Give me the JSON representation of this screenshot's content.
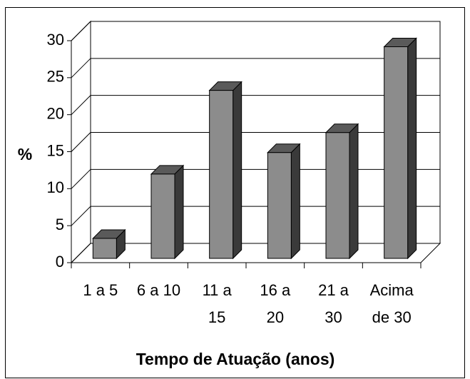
{
  "chart_data": {
    "type": "bar3d",
    "x_label": "Tempo de Atuação (anos)",
    "y_label": "%",
    "categories": [
      "1 a 5",
      "6 a 10",
      "11 a 15",
      "16 a 20",
      "21 a 30",
      "Acima de 30"
    ],
    "values": [
      2.7,
      11.4,
      22.7,
      14.3,
      17,
      28.6
    ],
    "color": "#8c8c8c",
    "ylim": [
      0,
      30
    ],
    "yticks": [
      0,
      5,
      10,
      15,
      20,
      25,
      30
    ],
    "grid": true
  }
}
